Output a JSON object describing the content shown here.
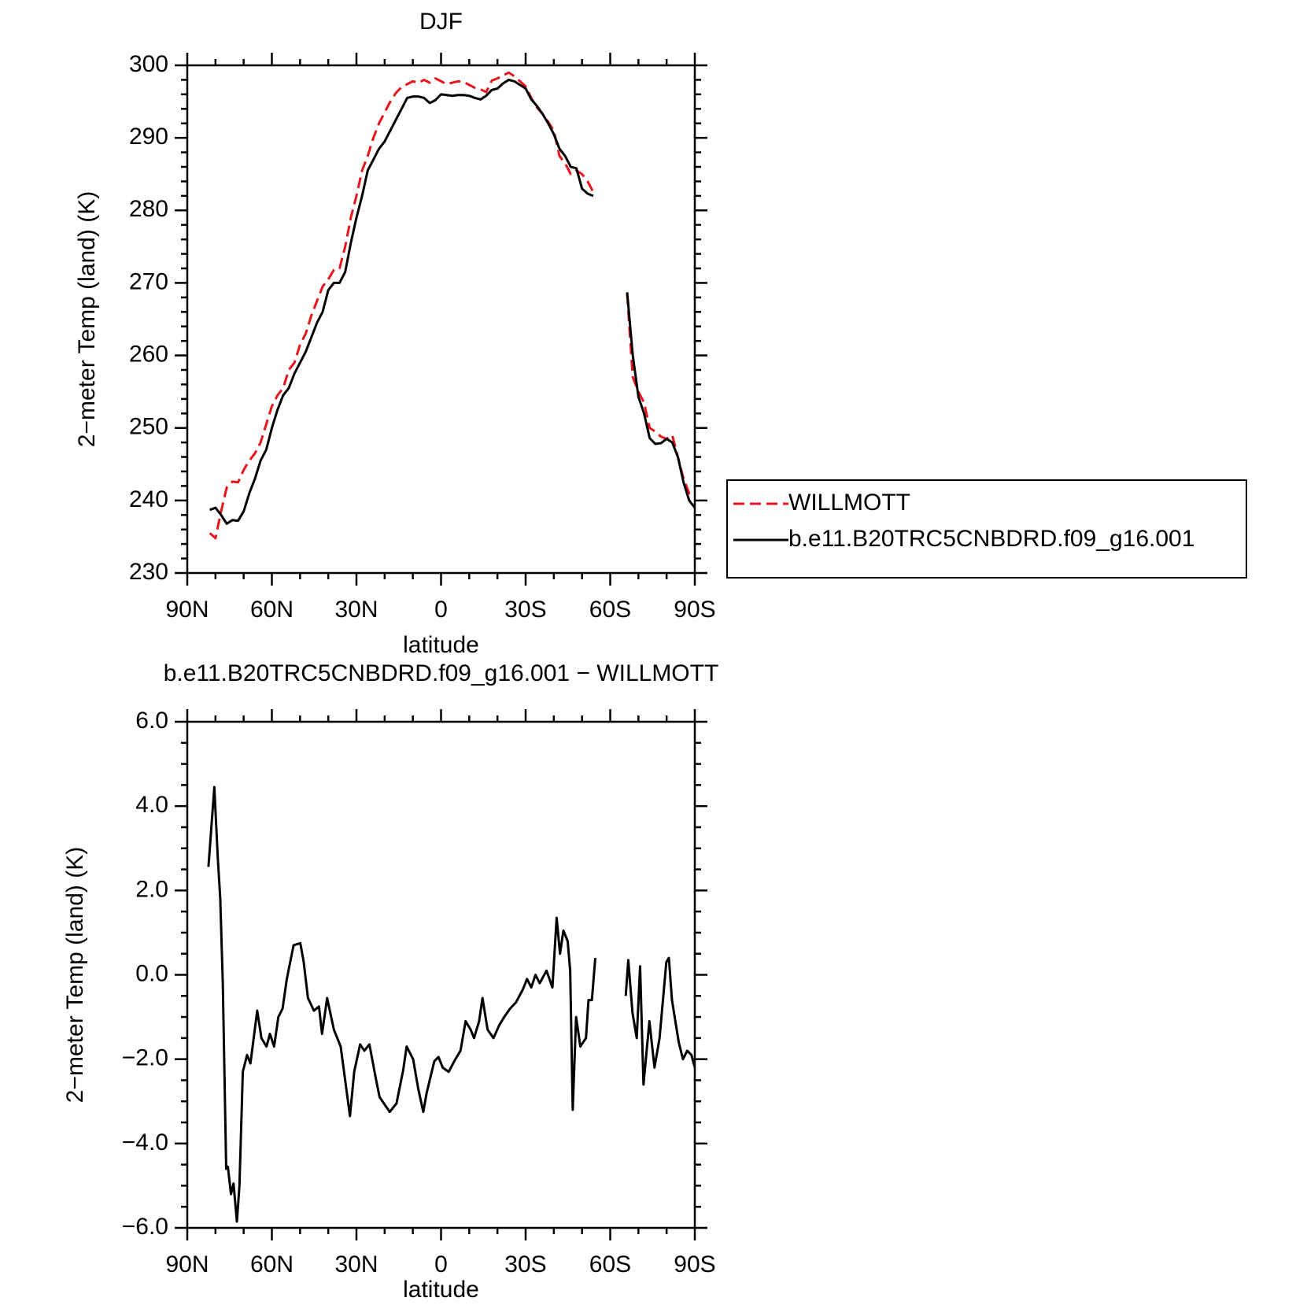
{
  "chart_data": [
    {
      "type": "line",
      "title": "DJF",
      "xlabel": "latitude",
      "ylabel": "2−meter Temp (land) (K)",
      "xlim": [
        90,
        -90
      ],
      "ylim": [
        230,
        300
      ],
      "xticks": [
        {
          "value": 90,
          "label": "90N"
        },
        {
          "value": 60,
          "label": "60N"
        },
        {
          "value": 30,
          "label": "30N"
        },
        0,
        {
          "value": -30,
          "label": "30S"
        },
        {
          "value": -60,
          "label": "60S"
        },
        {
          "value": -90,
          "label": "90S"
        }
      ],
      "xminorticks": [
        80,
        70,
        50,
        40,
        20,
        10,
        -10,
        -20,
        -40,
        -50,
        -70,
        -80
      ],
      "yticks": [
        230,
        240,
        250,
        260,
        270,
        280,
        290,
        300
      ],
      "yminorticks": [
        232,
        234,
        236,
        238,
        242,
        244,
        246,
        248,
        252,
        254,
        256,
        258,
        262,
        264,
        266,
        268,
        272,
        274,
        276,
        278,
        282,
        284,
        286,
        288,
        292,
        294,
        296,
        298
      ],
      "legend": "right",
      "x": [
        82,
        80,
        78,
        76,
        74,
        72,
        70,
        68,
        66,
        64,
        62,
        60,
        58,
        56,
        54,
        52,
        50,
        48,
        46,
        44,
        42,
        40,
        38,
        36,
        34,
        32,
        30,
        28,
        26,
        24,
        22,
        20,
        18,
        16,
        14,
        12,
        10,
        8,
        6,
        4,
        2,
        0,
        -2,
        -4,
        -6,
        -8,
        -10,
        -12,
        -14,
        -16,
        -18,
        -20,
        -22,
        -24,
        -26,
        -28,
        -30,
        -32,
        -34,
        -36,
        -38,
        -40,
        -42,
        -44,
        -46,
        -48,
        -50,
        -52,
        -54,
        -60,
        -66,
        -68,
        -70,
        -72,
        -74,
        -76,
        -78,
        -80,
        -82,
        -84,
        -86,
        -88,
        -90
      ],
      "series": [
        {
          "name": "WILLMOTT",
          "color": "#e8141b",
          "dash": "dashed",
          "values": [
            235.5,
            234.8,
            238.5,
            241.8,
            242.6,
            242.5,
            244.2,
            245.5,
            246.5,
            248,
            250.5,
            253,
            254.5,
            255.5,
            258,
            259,
            261.5,
            263,
            265.5,
            267.5,
            269.5,
            270.5,
            271.8,
            272,
            275,
            279,
            282,
            285.5,
            287.5,
            290,
            292,
            293.5,
            295,
            296.2,
            297,
            297.4,
            297.8,
            297.6,
            298,
            297.6,
            298.2,
            297.8,
            297.4,
            297.6,
            297.8,
            297.7,
            297.3,
            296.9,
            296.7,
            296.3,
            297.9,
            298.2,
            298.6,
            299,
            298.5,
            297.8,
            297.1,
            295.5,
            294.2,
            293.3,
            292.2,
            291,
            287.5,
            286.5,
            285,
            285.5,
            285,
            284,
            282.5,
            null,
            268.5,
            257,
            255,
            253.5,
            250,
            249.5,
            248.8,
            248.5,
            249,
            246,
            243,
            241,
            241
          ]
        },
        {
          "name": "b.e11.B20TRC5CNBDRD.f09_g16.001",
          "color": "#000000",
          "dash": "solid",
          "values": [
            238.7,
            239,
            238,
            236.8,
            237.3,
            237.2,
            238.5,
            241,
            243,
            245.5,
            247,
            250,
            252.5,
            254.5,
            255.5,
            257.5,
            259,
            260.5,
            262.5,
            264.5,
            266,
            269,
            270,
            270,
            271.5,
            275.5,
            279,
            282,
            285.5,
            287,
            288.5,
            289.5,
            291,
            292.5,
            294,
            295.5,
            295.7,
            295.7,
            295.5,
            294.8,
            295.2,
            296,
            295.9,
            295.8,
            295.9,
            295.9,
            295.8,
            295.5,
            295.3,
            295.8,
            296.6,
            296.8,
            297.5,
            298,
            297.8,
            297.3,
            296.8,
            295.3,
            294.4,
            293.3,
            292,
            290.5,
            288.5,
            287.5,
            286,
            285.8,
            283,
            282.3,
            282,
            null,
            268.7,
            260,
            254.3,
            252,
            248.6,
            247.8,
            247.9,
            248.5,
            248,
            246,
            242.5,
            240,
            239
          ]
        }
      ]
    },
    {
      "type": "line",
      "title": "b.e11.B20TRC5CNBDRD.f09_g16.001 − WILLMOTT",
      "xlabel": "latitude",
      "ylabel": "2−meter Temp (land) (K)",
      "xlim": [
        90,
        -90
      ],
      "ylim": [
        -6,
        6
      ],
      "xticks": [
        {
          "value": 90,
          "label": "90N"
        },
        {
          "value": 60,
          "label": "60N"
        },
        {
          "value": 30,
          "label": "30N"
        },
        0,
        {
          "value": -30,
          "label": "30S"
        },
        {
          "value": -60,
          "label": "60S"
        },
        {
          "value": -90,
          "label": "90S"
        }
      ],
      "xminorticks": [
        80,
        70,
        50,
        40,
        20,
        10,
        -10,
        -20,
        -40,
        -50,
        -70,
        -80
      ],
      "yticks": [
        {
          "value": -6,
          "label": "−6.0"
        },
        {
          "value": -4,
          "label": "−4.0"
        },
        {
          "value": -2,
          "label": "−2.0"
        },
        {
          "value": 0,
          "label": "0.0"
        },
        {
          "value": 2,
          "label": "2.0"
        },
        {
          "value": 4,
          "label": "4.0"
        },
        {
          "value": 6,
          "label": "6.0"
        }
      ],
      "yminorticks": [
        -5.5,
        -5,
        -4.5,
        -3.5,
        -3,
        -2.5,
        -1.5,
        -1,
        -0.5,
        0.5,
        1,
        1.5,
        2.5,
        3,
        3.5,
        4.5,
        5,
        5.5
      ],
      "x": [
        82.5,
        80.4,
        79.2,
        78.3,
        77.4,
        76.2,
        75.6,
        74.5,
        73.6,
        72.4,
        71.5,
        70.3,
        68.8,
        67.6,
        65.2,
        63.7,
        61.9,
        60.7,
        59.2,
        57.7,
        56.2,
        54.7,
        52.3,
        49.9,
        48.7,
        47.2,
        45.1,
        43.3,
        42.2,
        40.4,
        38.0,
        35.6,
        33.8,
        32.3,
        30.8,
        28.7,
        27.2,
        25.4,
        23.3,
        21.8,
        18.2,
        15.8,
        13.4,
        12.2,
        9.9,
        8.1,
        6.3,
        5.1,
        2.4,
        0.9,
        -0.6,
        -2.7,
        -5.1,
        -6.9,
        -8.7,
        -10.5,
        -11.7,
        -13.5,
        -14.7,
        -16.5,
        -18.6,
        -20.6,
        -22.4,
        -24.5,
        -26.6,
        -29.0,
        -30.5,
        -32.0,
        -33.5,
        -35.0,
        -37.4,
        -39.5,
        -41.0,
        -42.2,
        -43.4,
        -44.9,
        -45.8,
        -46.7,
        -47.9,
        -49.4,
        -51.4,
        -52.3,
        -53.5,
        -54.7,
        -60,
        -65.5,
        -66.4,
        -67.9,
        -69.4,
        -70.6,
        -71.8,
        -73.9,
        -75.7,
        -77.5,
        -79.9,
        -80.8,
        -81.9,
        -84.3,
        -85.8,
        -87.3,
        -88.8,
        -90
      ],
      "series": [
        {
          "color": "#000000",
          "dash": "solid",
          "values": [
            2.56,
            4.45,
            2.8,
            1.8,
            -0.2,
            -4.6,
            -4.55,
            -5.2,
            -4.95,
            -5.85,
            -5.0,
            -2.3,
            -1.9,
            -2.1,
            -0.85,
            -1.5,
            -1.7,
            -1.4,
            -1.7,
            -1.0,
            -0.8,
            -0.1,
            0.7,
            0.75,
            0.3,
            -0.55,
            -0.85,
            -0.75,
            -1.4,
            -0.55,
            -1.3,
            -1.7,
            -2.6,
            -3.35,
            -2.3,
            -1.65,
            -1.8,
            -1.65,
            -2.4,
            -2.9,
            -3.25,
            -3.05,
            -2.25,
            -1.7,
            -2.0,
            -2.7,
            -3.25,
            -2.8,
            -2.05,
            -1.95,
            -2.2,
            -2.3,
            -2.0,
            -1.8,
            -1.1,
            -1.3,
            -1.5,
            -1.1,
            -0.55,
            -1.3,
            -1.5,
            -1.2,
            -1.0,
            -0.8,
            -0.65,
            -0.35,
            -0.1,
            -0.3,
            0.0,
            -0.2,
            0.1,
            -0.3,
            1.35,
            0.5,
            1.05,
            0.8,
            0.1,
            -3.2,
            -1.0,
            -1.7,
            -1.5,
            -0.6,
            -0.6,
            0.4,
            null,
            -0.5,
            0.35,
            -0.9,
            -1.5,
            0.2,
            -2.6,
            -1.1,
            -2.2,
            -1.5,
            0.3,
            0.4,
            -0.6,
            -1.6,
            -2.0,
            -1.8,
            -1.9,
            -2.2
          ]
        }
      ]
    }
  ]
}
